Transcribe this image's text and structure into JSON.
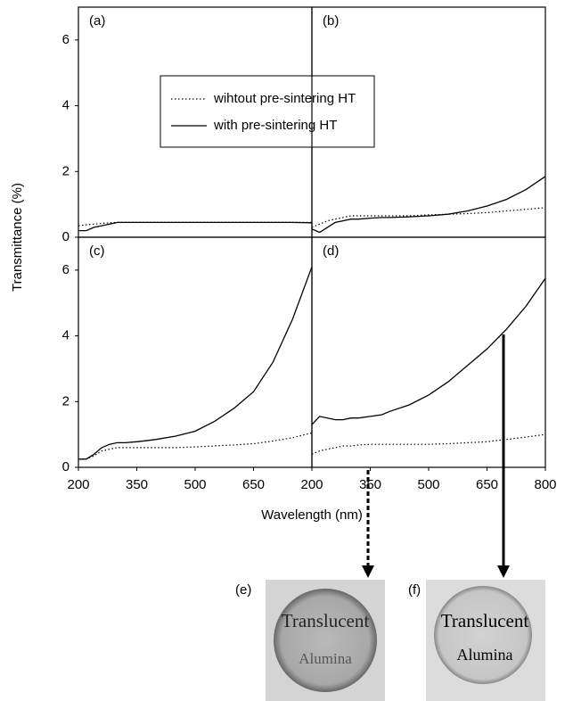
{
  "figure": {
    "ylabel": "Transmittance (%)",
    "xlabel": "Wavelength (nm)"
  },
  "chart_data": [
    {
      "type": "line",
      "label": "(a)",
      "xlim": [
        200,
        800
      ],
      "ylim": [
        0,
        7
      ],
      "yticks": [
        0,
        2,
        4,
        6
      ],
      "legend": "top-center",
      "x": [
        200,
        220,
        240,
        260,
        280,
        300,
        320,
        350,
        380,
        400,
        450,
        500,
        550,
        600,
        650,
        700,
        750,
        800
      ],
      "series": [
        {
          "name": "wihtout pre-sintering HT",
          "color": "#000000",
          "dash": "dotted",
          "values": [
            0.35,
            0.38,
            0.4,
            0.42,
            0.44,
            0.45,
            0.45,
            0.45,
            0.45,
            0.45,
            0.45,
            0.45,
            0.45,
            0.45,
            0.45,
            0.45,
            0.45,
            0.45
          ]
        },
        {
          "name": "with pre-sintering HT",
          "color": "#000000",
          "dash": "solid",
          "values": [
            0.2,
            0.2,
            0.3,
            0.35,
            0.4,
            0.45,
            0.45,
            0.45,
            0.45,
            0.45,
            0.45,
            0.45,
            0.45,
            0.45,
            0.45,
            0.45,
            0.45,
            0.44
          ]
        }
      ]
    },
    {
      "type": "line",
      "label": "(b)",
      "xlim": [
        200,
        800
      ],
      "ylim": [
        0,
        7
      ],
      "x": [
        200,
        220,
        240,
        260,
        280,
        300,
        320,
        350,
        380,
        400,
        450,
        500,
        550,
        600,
        650,
        700,
        750,
        800
      ],
      "series": [
        {
          "color": "#000000",
          "dash": "dotted",
          "values": [
            0.3,
            0.4,
            0.5,
            0.55,
            0.6,
            0.65,
            0.65,
            0.65,
            0.65,
            0.65,
            0.65,
            0.68,
            0.7,
            0.72,
            0.75,
            0.8,
            0.85,
            0.9
          ]
        },
        {
          "color": "#000000",
          "dash": "solid",
          "values": [
            0.25,
            0.15,
            0.3,
            0.45,
            0.5,
            0.55,
            0.55,
            0.58,
            0.6,
            0.6,
            0.62,
            0.65,
            0.7,
            0.8,
            0.95,
            1.15,
            1.45,
            1.85
          ]
        }
      ]
    },
    {
      "type": "line",
      "label": "(c)",
      "xlim": [
        200,
        800
      ],
      "ylim": [
        0,
        7
      ],
      "yticks": [
        0,
        2,
        4,
        6
      ],
      "xticks": [
        200,
        350,
        500,
        650
      ],
      "x": [
        200,
        220,
        240,
        260,
        280,
        300,
        320,
        350,
        380,
        400,
        450,
        500,
        550,
        600,
        650,
        700,
        750,
        800
      ],
      "series": [
        {
          "color": "#000000",
          "dash": "dotted",
          "values": [
            0.25,
            0.25,
            0.35,
            0.5,
            0.55,
            0.6,
            0.6,
            0.6,
            0.6,
            0.6,
            0.6,
            0.62,
            0.65,
            0.68,
            0.72,
            0.8,
            0.9,
            1.05
          ]
        },
        {
          "color": "#000000",
          "dash": "solid",
          "values": [
            0.25,
            0.25,
            0.4,
            0.6,
            0.7,
            0.75,
            0.75,
            0.78,
            0.82,
            0.85,
            0.95,
            1.1,
            1.4,
            1.8,
            2.3,
            3.2,
            4.5,
            6.1
          ]
        }
      ]
    },
    {
      "type": "line",
      "label": "(d)",
      "xlim": [
        200,
        800
      ],
      "ylim": [
        0,
        7
      ],
      "xticks": [
        200,
        350,
        500,
        650,
        800
      ],
      "x": [
        200,
        220,
        240,
        260,
        280,
        300,
        320,
        350,
        380,
        400,
        450,
        500,
        550,
        600,
        650,
        700,
        750,
        800
      ],
      "series": [
        {
          "color": "#000000",
          "dash": "dotted",
          "values": [
            0.4,
            0.5,
            0.55,
            0.6,
            0.65,
            0.65,
            0.68,
            0.7,
            0.7,
            0.7,
            0.7,
            0.7,
            0.72,
            0.75,
            0.78,
            0.85,
            0.92,
            1.0
          ]
        },
        {
          "color": "#000000",
          "dash": "solid",
          "values": [
            1.3,
            1.55,
            1.5,
            1.45,
            1.45,
            1.5,
            1.5,
            1.55,
            1.6,
            1.7,
            1.9,
            2.2,
            2.6,
            3.1,
            3.6,
            4.2,
            4.9,
            5.75
          ]
        }
      ]
    }
  ],
  "photos": [
    {
      "label": "(e)",
      "lines": [
        "Translucent",
        "Alumina"
      ]
    },
    {
      "label": "(f)",
      "lines": [
        "Translucent",
        "Alumina"
      ]
    }
  ]
}
